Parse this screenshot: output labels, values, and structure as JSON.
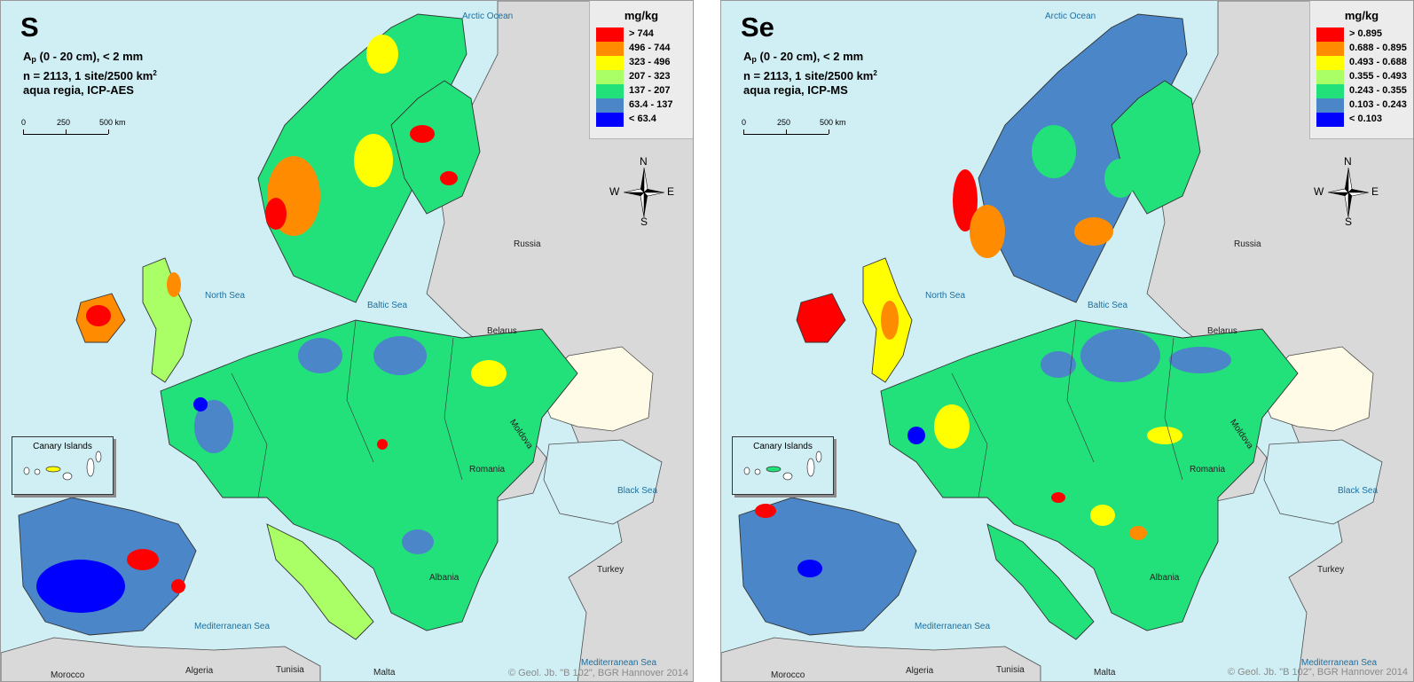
{
  "places": {
    "arctic": "Arctic Ocean",
    "north_sea": "North Sea",
    "baltic": "Baltic Sea",
    "russia": "Russia",
    "belarus": "Belarus",
    "moldova": "Moldova",
    "romania": "Romania",
    "black_sea": "Black Sea",
    "turkey": "Turkey",
    "albania": "Albania",
    "med": "Mediterranean Sea",
    "morocco": "Morocco",
    "algeria": "Algeria",
    "tunisia": "Tunisia",
    "malta": "Malta"
  },
  "scale": {
    "l0": "0",
    "l1": "250",
    "l2": "500 km"
  },
  "compass": {
    "n": "N",
    "s": "S",
    "e": "E",
    "w": "W"
  },
  "inset_title": "Canary Islands",
  "copyright": "© Geol. Jb. \"B 102\", BGR Hannover 2014",
  "legend_colors": [
    "#ff0000",
    "#ff8c00",
    "#ffff00",
    "#aaff66",
    "#22e07a",
    "#4a86c8",
    "#0000ff"
  ],
  "panels": [
    {
      "symbol": "S",
      "info_line1_pre": "A",
      "info_line1_sub": "p",
      "info_line1_post": " (0 - 20 cm), < 2 mm",
      "info_line2": "n = 2113, 1 site/2500 km",
      "info_line2_sup": "2",
      "info_line3": "aqua regia, ICP-AES",
      "legend_title": "mg/kg",
      "legend": [
        "> 744",
        "496 - 744",
        "323 - 496",
        "207 - 323",
        "137 - 207",
        "63.4 - 137",
        "< 63.4"
      ]
    },
    {
      "symbol": "Se",
      "info_line1_pre": "A",
      "info_line1_sub": "p",
      "info_line1_post": " (0 - 20 cm), < 2 mm",
      "info_line2": "n = 2113, 1 site/2500 km",
      "info_line2_sup": "2",
      "info_line3": "aqua regia, ICP-MS",
      "legend_title": "mg/kg",
      "legend": [
        "> 0.895",
        "0.688 - 0.895",
        "0.493 - 0.688",
        "0.355 - 0.493",
        "0.243 - 0.355",
        "0.103 - 0.243",
        "< 0.103"
      ]
    }
  ]
}
